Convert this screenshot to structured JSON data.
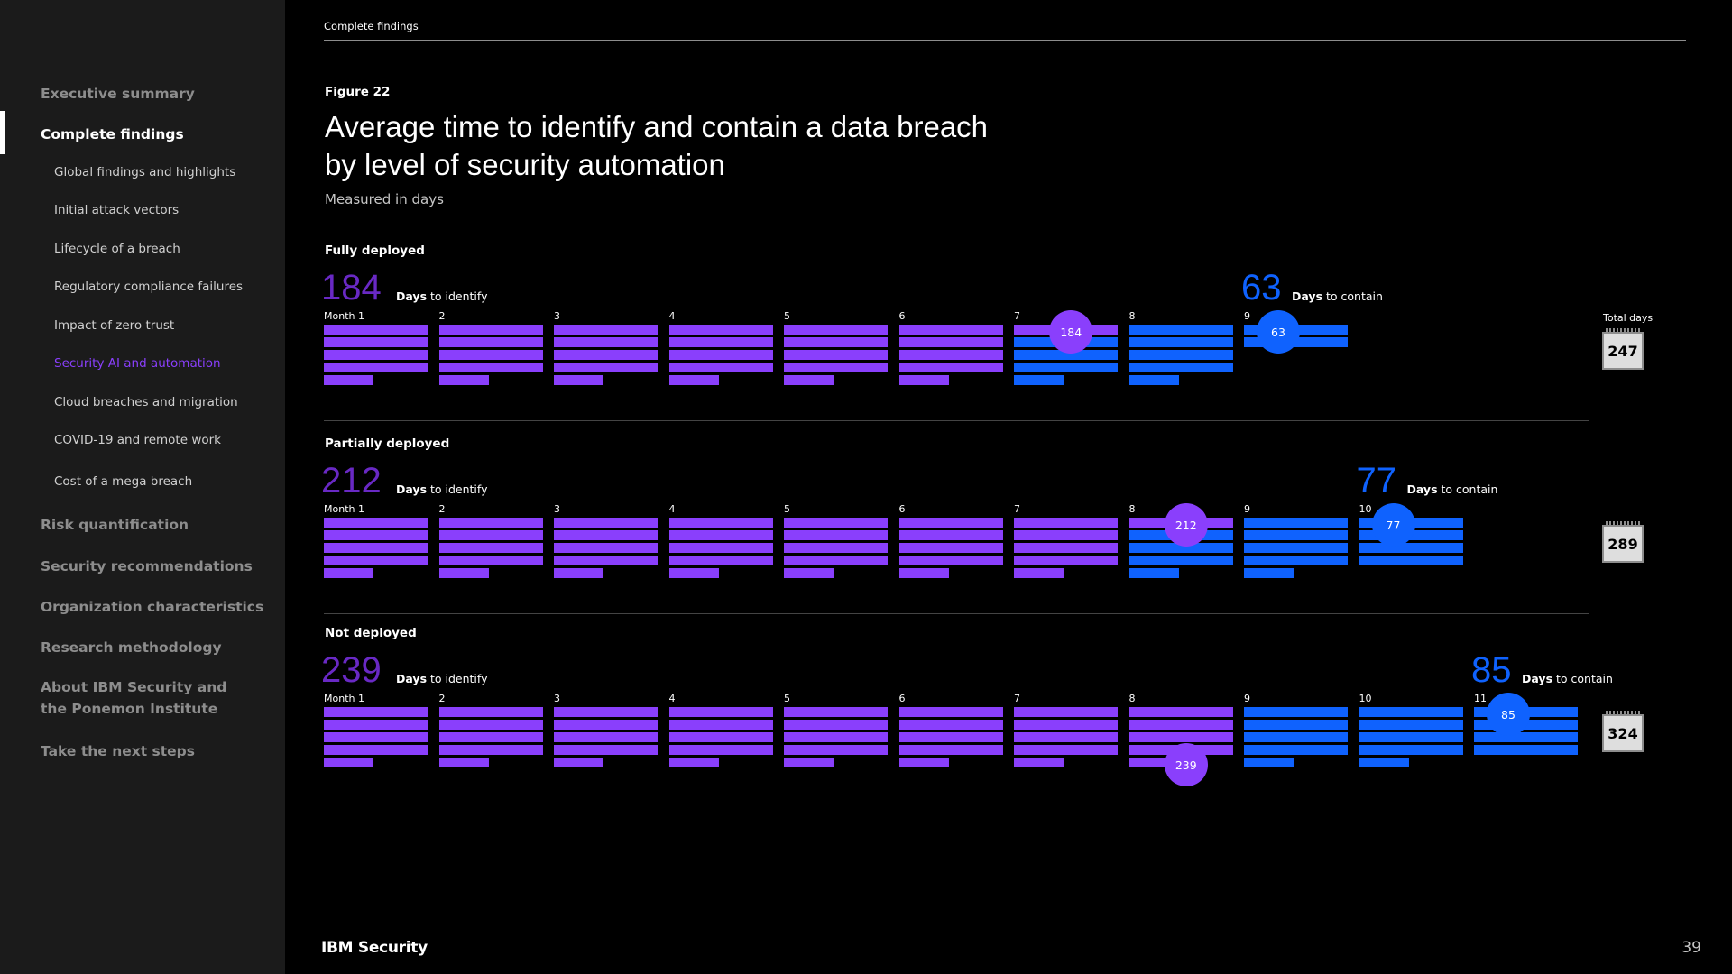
{
  "sidebar": {
    "items": [
      {
        "label": "Executive summary",
        "level": 1
      },
      {
        "label": "Complete findings",
        "level": 1,
        "active": true
      },
      {
        "label": "Global findings and highlights",
        "level": 2
      },
      {
        "label": "Initial attack vectors",
        "level": 2
      },
      {
        "label": "Lifecycle of a breach",
        "level": 2
      },
      {
        "label": "Regulatory compliance failures",
        "level": 2
      },
      {
        "label": "Impact of zero trust",
        "level": 2
      },
      {
        "label": "Security AI and automation",
        "level": 2,
        "current": true
      },
      {
        "label": "Cloud breaches and migration",
        "level": 2
      },
      {
        "label": "COVID-19 and remote work",
        "level": 2
      },
      {
        "label": "Cost of a mega breach",
        "level": 2
      },
      {
        "label": "Risk quantification",
        "level": 1
      },
      {
        "label": "Security recommendations",
        "level": 1
      },
      {
        "label": "Organization characteristics",
        "level": 1
      },
      {
        "label": "Research methodology",
        "level": 1
      },
      {
        "label": "About IBM Security and the Ponemon Institute",
        "level": 1
      },
      {
        "label": "Take the next steps",
        "level": 1
      }
    ]
  },
  "header": {
    "breadcrumb": "Complete findings"
  },
  "figure_label": "Figure 22",
  "footer": {
    "logo": "IBM Security",
    "page_number": "39"
  },
  "colors": {
    "identify": "#8a3ffc",
    "contain": "#0f62fe",
    "big_number": "#6929c4",
    "background": "#000000"
  },
  "icons": {
    "total": "calendar-icon"
  },
  "chart_data": {
    "type": "bar",
    "title": "Average time to identify and contain a data breach by level of security automation",
    "subtitle": "Measured in days",
    "unit": "days",
    "days_per_month": 30,
    "label_month_first": "Month 1",
    "label_days_to": "Days",
    "label_identify": "to identify",
    "label_contain": "to contain",
    "total_label": "Total days",
    "rows": [
      {
        "name": "Fully deployed",
        "identify": 184,
        "contain": 63,
        "total": 247
      },
      {
        "name": "Partially deployed",
        "identify": 212,
        "contain": 77,
        "total": 289
      },
      {
        "name": "Not deployed",
        "identify": 239,
        "contain": 85,
        "total": 324
      }
    ]
  }
}
